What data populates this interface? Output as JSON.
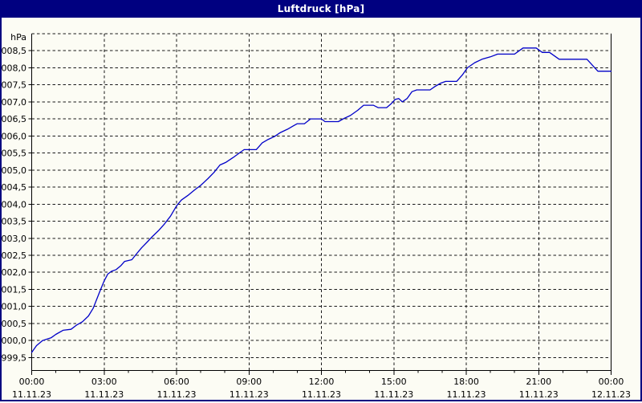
{
  "window": {
    "title": "Luftdruck [hPa]"
  },
  "colors": {
    "titlebar_bg": "#000080",
    "titlebar_text": "#FFFFFF",
    "window_border": "#000080",
    "background": "#FCFCF4",
    "grid": "#1a1a1a",
    "axis": "#000000",
    "line": "#0000C8"
  },
  "chart_data": {
    "type": "line",
    "title": "Luftdruck [hPa]",
    "ylabel": "hPa",
    "xlabel": "",
    "grid": true,
    "xlim_hours": [
      0,
      24
    ],
    "ylim": [
      999.1,
      1009.0
    ],
    "y_ticks": [
      999.5,
      1000.0,
      1000.5,
      1001.0,
      1001.5,
      1002.0,
      1002.5,
      1003.0,
      1003.5,
      1004.0,
      1004.5,
      1005.0,
      1005.5,
      1006.0,
      1006.5,
      1007.0,
      1007.5,
      1008.0,
      1008.5
    ],
    "y_tick_labels": [
      "999,5",
      "1000,0",
      "1000,5",
      "1001,0",
      "1001,5",
      "1002,0",
      "1002,5",
      "1003,0",
      "1003,5",
      "1004,0",
      "1004,5",
      "1005,0",
      "1005,5",
      "1006,0",
      "1006,5",
      "1007,0",
      "1007,5",
      "1008,0",
      "1008,5"
    ],
    "y_grid_extra": [
      1009.0
    ],
    "x_major_ticks_hours": [
      0,
      3,
      6,
      9,
      12,
      15,
      18,
      21,
      24
    ],
    "x_minor_tick_interval_hours": 1,
    "x_tick_time_labels": [
      "00:00",
      "03:00",
      "06:00",
      "09:00",
      "12:00",
      "15:00",
      "18:00",
      "21:00",
      "00:00"
    ],
    "x_tick_date_labels": [
      "11.11.23",
      "11.11.23",
      "11.11.23",
      "11.11.23",
      "11.11.23",
      "11.11.23",
      "11.11.23",
      "11.11.23",
      "12.11.23"
    ],
    "series": [
      {
        "name": "Luftdruck",
        "color": "#0000C8",
        "points": [
          [
            0.0,
            999.65
          ],
          [
            0.2,
            999.85
          ],
          [
            0.45,
            1000.0
          ],
          [
            0.8,
            1000.08
          ],
          [
            1.0,
            1000.18
          ],
          [
            1.3,
            1000.3
          ],
          [
            1.63,
            1000.33
          ],
          [
            1.85,
            1000.45
          ],
          [
            2.1,
            1000.55
          ],
          [
            2.35,
            1000.72
          ],
          [
            2.55,
            1000.95
          ],
          [
            2.8,
            1001.4
          ],
          [
            3.0,
            1001.75
          ],
          [
            3.15,
            1001.95
          ],
          [
            3.3,
            1002.03
          ],
          [
            3.5,
            1002.08
          ],
          [
            3.7,
            1002.2
          ],
          [
            3.85,
            1002.32
          ],
          [
            4.15,
            1002.37
          ],
          [
            4.35,
            1002.55
          ],
          [
            4.55,
            1002.72
          ],
          [
            4.8,
            1002.9
          ],
          [
            5.0,
            1003.05
          ],
          [
            5.25,
            1003.22
          ],
          [
            5.5,
            1003.42
          ],
          [
            5.75,
            1003.65
          ],
          [
            6.0,
            1003.95
          ],
          [
            6.2,
            1004.12
          ],
          [
            6.5,
            1004.27
          ],
          [
            6.75,
            1004.42
          ],
          [
            7.0,
            1004.55
          ],
          [
            7.3,
            1004.75
          ],
          [
            7.55,
            1004.93
          ],
          [
            7.8,
            1005.15
          ],
          [
            8.05,
            1005.23
          ],
          [
            8.35,
            1005.37
          ],
          [
            8.6,
            1005.5
          ],
          [
            8.8,
            1005.6
          ],
          [
            9.3,
            1005.6
          ],
          [
            9.55,
            1005.8
          ],
          [
            9.8,
            1005.9
          ],
          [
            10.05,
            1005.98
          ],
          [
            10.3,
            1006.1
          ],
          [
            10.6,
            1006.2
          ],
          [
            10.85,
            1006.3
          ],
          [
            11.0,
            1006.36
          ],
          [
            11.3,
            1006.36
          ],
          [
            11.55,
            1006.5
          ],
          [
            12.0,
            1006.5
          ],
          [
            12.15,
            1006.42
          ],
          [
            12.7,
            1006.42
          ],
          [
            12.95,
            1006.52
          ],
          [
            13.2,
            1006.6
          ],
          [
            13.5,
            1006.75
          ],
          [
            13.75,
            1006.9
          ],
          [
            14.15,
            1006.9
          ],
          [
            14.35,
            1006.83
          ],
          [
            14.7,
            1006.83
          ],
          [
            14.9,
            1006.95
          ],
          [
            15.05,
            1007.07
          ],
          [
            15.2,
            1007.1
          ],
          [
            15.35,
            1007.0
          ],
          [
            15.55,
            1007.1
          ],
          [
            15.75,
            1007.3
          ],
          [
            15.95,
            1007.35
          ],
          [
            16.5,
            1007.35
          ],
          [
            16.7,
            1007.45
          ],
          [
            16.95,
            1007.55
          ],
          [
            17.15,
            1007.6
          ],
          [
            17.6,
            1007.6
          ],
          [
            17.85,
            1007.8
          ],
          [
            18.05,
            1008.0
          ],
          [
            18.35,
            1008.15
          ],
          [
            18.65,
            1008.25
          ],
          [
            19.0,
            1008.32
          ],
          [
            19.3,
            1008.4
          ],
          [
            20.0,
            1008.4
          ],
          [
            20.35,
            1008.58
          ],
          [
            20.9,
            1008.58
          ],
          [
            21.05,
            1008.5
          ],
          [
            21.15,
            1008.45
          ],
          [
            21.45,
            1008.45
          ],
          [
            21.85,
            1008.25
          ],
          [
            23.0,
            1008.25
          ],
          [
            23.45,
            1007.9
          ],
          [
            24.0,
            1007.9
          ]
        ]
      }
    ]
  }
}
